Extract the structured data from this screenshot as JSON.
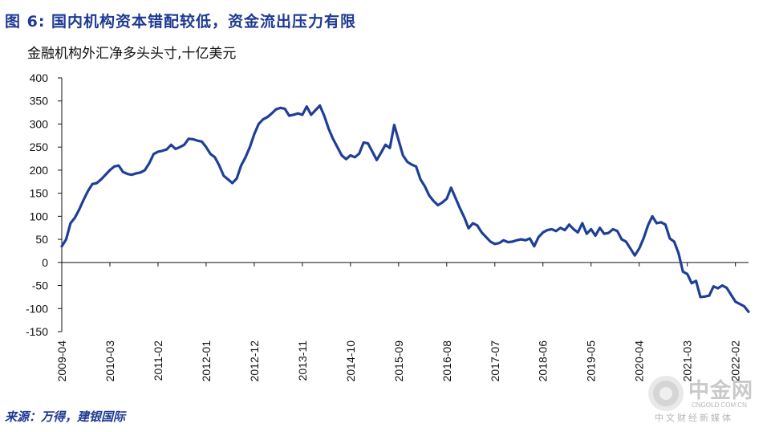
{
  "figure": {
    "title": "图 6: 国内机构资本错配较低，资金流出压力有限",
    "unit_label": "金融机构外汇净多头头寸,十亿美元",
    "source": "来源：万得，建银国际"
  },
  "watermark": {
    "brand": "中金网",
    "site": "CNGOLD.COM.CN",
    "tagline": "中文财经新媒体"
  },
  "colors": {
    "title": "#1f3a93",
    "series": "#1f3f96",
    "axis": "#111111"
  },
  "chart_data": {
    "type": "line",
    "title": "",
    "ylabel": "金融机构外汇净多头头寸,十亿美元",
    "xlabel": "",
    "ylim": [
      -150,
      400
    ],
    "yticks": [
      400,
      350,
      300,
      250,
      200,
      150,
      100,
      50,
      0,
      -50,
      -100,
      -150
    ],
    "xticks": [
      "2009-04",
      "2010-03",
      "2011-02",
      "2012-01",
      "2012-12",
      "2013-11",
      "2014-10",
      "2015-09",
      "2016-08",
      "2017-07",
      "2018-06",
      "2019-05",
      "2020-04",
      "2021-03",
      "2022-02"
    ],
    "grid": false,
    "series": [
      {
        "name": "",
        "start": "2009-04",
        "values": [
          35,
          50,
          85,
          97,
          115,
          136,
          155,
          170,
          172,
          180,
          190,
          200,
          208,
          210,
          196,
          192,
          190,
          193,
          195,
          200,
          215,
          235,
          240,
          242,
          245,
          255,
          246,
          250,
          255,
          268,
          267,
          264,
          262,
          250,
          235,
          228,
          210,
          188,
          180,
          172,
          182,
          210,
          228,
          250,
          278,
          300,
          310,
          315,
          323,
          332,
          335,
          333,
          318,
          320,
          323,
          320,
          338,
          320,
          330,
          340,
          318,
          290,
          268,
          250,
          232,
          224,
          232,
          228,
          236,
          260,
          258,
          240,
          222,
          238,
          255,
          248,
          298,
          265,
          232,
          218,
          212,
          208,
          180,
          165,
          145,
          133,
          124,
          130,
          138,
          162,
          140,
          118,
          98,
          74,
          85,
          80,
          65,
          55,
          45,
          40,
          42,
          48,
          44,
          45,
          48,
          50,
          48,
          52,
          35,
          55,
          65,
          70,
          72,
          68,
          75,
          70,
          82,
          72,
          65,
          85,
          62,
          72,
          58,
          75,
          62,
          64,
          72,
          68,
          50,
          45,
          30,
          15,
          30,
          52,
          80,
          100,
          85,
          87,
          82,
          52,
          45,
          20,
          -20,
          -25,
          -45,
          -40,
          -75,
          -74,
          -72,
          -52,
          -56,
          -50,
          -55,
          -70,
          -85,
          -90,
          -95,
          -107
        ]
      }
    ]
  }
}
